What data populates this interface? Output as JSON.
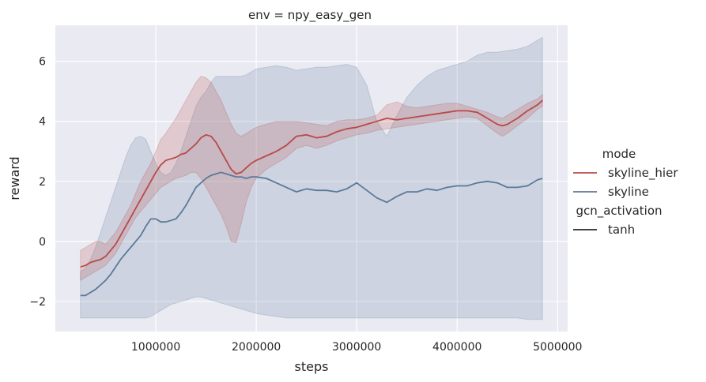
{
  "chart_data": {
    "type": "line",
    "title": "env = npy_easy_gen",
    "xlabel": "steps",
    "ylabel": "reward",
    "xlim": [
      0,
      5100000
    ],
    "ylim": [
      -3,
      7.2
    ],
    "grid": true,
    "legend_placement": "right",
    "xticks": [
      1000000,
      2000000,
      3000000,
      4000000,
      5000000
    ],
    "xtick_labels": [
      "1000000",
      "2000000",
      "3000000",
      "4000000",
      "5000000"
    ],
    "yticks": [
      -2,
      0,
      2,
      4,
      6
    ],
    "ytick_labels": [
      "−2",
      "0",
      "2",
      "4",
      "6"
    ],
    "legend": {
      "sections": [
        {
          "title": "mode",
          "entries": [
            {
              "label": "skyline_hier",
              "color": "#b94a48"
            },
            {
              "label": "skyline",
              "color": "#5b7a99"
            }
          ]
        },
        {
          "title": "gcn_activation",
          "entries": [
            {
              "label": "tanh",
              "color": "#262626"
            }
          ]
        }
      ]
    },
    "series": [
      {
        "name": "skyline_hier",
        "color": "#b94a48",
        "x": [
          250000,
          300000,
          350000,
          400000,
          450000,
          500000,
          550000,
          600000,
          650000,
          700000,
          750000,
          800000,
          850000,
          900000,
          950000,
          1000000,
          1050000,
          1100000,
          1150000,
          1200000,
          1250000,
          1300000,
          1350000,
          1400000,
          1450000,
          1500000,
          1550000,
          1600000,
          1650000,
          1700000,
          1750000,
          1800000,
          1850000,
          1900000,
          1950000,
          2000000,
          2100000,
          2200000,
          2300000,
          2400000,
          2500000,
          2600000,
          2700000,
          2800000,
          2900000,
          3000000,
          3100000,
          3200000,
          3300000,
          3400000,
          3500000,
          3600000,
          3700000,
          3800000,
          3900000,
          4000000,
          4100000,
          4200000,
          4300000,
          4400000,
          4450000,
          4500000,
          4600000,
          4700000,
          4800000,
          4850000
        ],
        "y": [
          -0.85,
          -0.8,
          -0.7,
          -0.65,
          -0.6,
          -0.5,
          -0.3,
          -0.1,
          0.2,
          0.5,
          0.8,
          1.1,
          1.4,
          1.7,
          2.0,
          2.3,
          2.55,
          2.7,
          2.75,
          2.8,
          2.9,
          2.95,
          3.1,
          3.25,
          3.45,
          3.55,
          3.5,
          3.3,
          3.0,
          2.7,
          2.4,
          2.25,
          2.3,
          2.45,
          2.6,
          2.7,
          2.85,
          3.0,
          3.2,
          3.5,
          3.55,
          3.45,
          3.5,
          3.65,
          3.75,
          3.8,
          3.9,
          4.0,
          4.1,
          4.05,
          4.1,
          4.15,
          4.2,
          4.25,
          4.3,
          4.35,
          4.35,
          4.3,
          4.1,
          3.9,
          3.85,
          3.9,
          4.1,
          4.35,
          4.55,
          4.7
        ],
        "lower": [
          -1.3,
          -1.2,
          -1.1,
          -1.0,
          -0.9,
          -0.8,
          -0.6,
          -0.4,
          -0.1,
          0.2,
          0.5,
          0.8,
          1.0,
          1.2,
          1.4,
          1.6,
          1.8,
          1.9,
          2.0,
          2.1,
          2.15,
          2.2,
          2.3,
          2.3,
          2.1,
          1.8,
          1.5,
          1.2,
          0.9,
          0.5,
          0.0,
          -0.05,
          0.6,
          1.3,
          1.8,
          2.1,
          2.4,
          2.6,
          2.8,
          3.1,
          3.2,
          3.1,
          3.2,
          3.35,
          3.45,
          3.55,
          3.6,
          3.7,
          3.75,
          3.8,
          3.85,
          3.9,
          3.95,
          4.0,
          4.05,
          4.1,
          4.15,
          4.1,
          3.85,
          3.6,
          3.5,
          3.6,
          3.85,
          4.1,
          4.4,
          4.5
        ],
        "upper": [
          -0.3,
          -0.2,
          -0.1,
          0.0,
          0.0,
          -0.1,
          0.1,
          0.3,
          0.6,
          0.9,
          1.2,
          1.6,
          2.0,
          2.3,
          2.6,
          3.0,
          3.4,
          3.6,
          3.85,
          4.1,
          4.4,
          4.7,
          5.0,
          5.3,
          5.5,
          5.45,
          5.3,
          5.0,
          4.7,
          4.3,
          3.9,
          3.6,
          3.5,
          3.6,
          3.7,
          3.8,
          3.9,
          4.0,
          4.0,
          4.0,
          3.95,
          3.9,
          3.85,
          4.0,
          4.05,
          4.05,
          4.1,
          4.2,
          4.55,
          4.65,
          4.5,
          4.45,
          4.5,
          4.55,
          4.6,
          4.6,
          4.5,
          4.4,
          4.3,
          4.15,
          4.1,
          4.2,
          4.4,
          4.6,
          4.75,
          4.9
        ]
      },
      {
        "name": "skyline",
        "color": "#5b7a99",
        "x": [
          250000,
          300000,
          350000,
          400000,
          450000,
          500000,
          550000,
          600000,
          650000,
          700000,
          750000,
          800000,
          850000,
          900000,
          950000,
          1000000,
          1050000,
          1100000,
          1150000,
          1200000,
          1250000,
          1300000,
          1350000,
          1400000,
          1450000,
          1500000,
          1550000,
          1600000,
          1650000,
          1700000,
          1750000,
          1800000,
          1850000,
          1900000,
          1950000,
          2000000,
          2100000,
          2200000,
          2300000,
          2400000,
          2500000,
          2600000,
          2700000,
          2800000,
          2900000,
          3000000,
          3100000,
          3200000,
          3300000,
          3400000,
          3500000,
          3600000,
          3700000,
          3800000,
          3900000,
          4000000,
          4100000,
          4200000,
          4300000,
          4400000,
          4500000,
          4600000,
          4700000,
          4800000,
          4850000
        ],
        "y": [
          -1.8,
          -1.8,
          -1.7,
          -1.6,
          -1.45,
          -1.3,
          -1.1,
          -0.85,
          -0.6,
          -0.4,
          -0.2,
          0.0,
          0.2,
          0.5,
          0.75,
          0.75,
          0.65,
          0.65,
          0.7,
          0.75,
          0.95,
          1.2,
          1.5,
          1.8,
          1.95,
          2.1,
          2.2,
          2.25,
          2.3,
          2.25,
          2.2,
          2.15,
          2.15,
          2.1,
          2.15,
          2.15,
          2.1,
          1.95,
          1.8,
          1.65,
          1.75,
          1.7,
          1.7,
          1.65,
          1.75,
          1.95,
          1.7,
          1.45,
          1.3,
          1.5,
          1.65,
          1.65,
          1.75,
          1.7,
          1.8,
          1.85,
          1.85,
          1.95,
          2.0,
          1.95,
          1.8,
          1.8,
          1.85,
          2.05,
          2.1
        ],
        "lower": [
          -2.55,
          -2.55,
          -2.55,
          -2.55,
          -2.55,
          -2.55,
          -2.55,
          -2.55,
          -2.55,
          -2.55,
          -2.55,
          -2.55,
          -2.55,
          -2.55,
          -2.5,
          -2.4,
          -2.3,
          -2.2,
          -2.1,
          -2.05,
          -2.0,
          -1.95,
          -1.9,
          -1.85,
          -1.85,
          -1.9,
          -1.95,
          -2.0,
          -2.05,
          -2.1,
          -2.15,
          -2.2,
          -2.25,
          -2.3,
          -2.35,
          -2.4,
          -2.45,
          -2.5,
          -2.55,
          -2.55,
          -2.55,
          -2.55,
          -2.55,
          -2.55,
          -2.55,
          -2.55,
          -2.55,
          -2.55,
          -2.55,
          -2.55,
          -2.55,
          -2.55,
          -2.55,
          -2.55,
          -2.55,
          -2.55,
          -2.55,
          -2.55,
          -2.55,
          -2.55,
          -2.55,
          -2.55,
          -2.6,
          -2.6,
          -2.6
        ],
        "upper": [
          -1.0,
          -0.9,
          -0.6,
          -0.2,
          0.3,
          0.8,
          1.3,
          1.8,
          2.3,
          2.8,
          3.2,
          3.45,
          3.5,
          3.4,
          3.0,
          2.6,
          2.3,
          2.2,
          2.3,
          2.6,
          3.0,
          3.5,
          4.0,
          4.5,
          4.8,
          5.0,
          5.3,
          5.5,
          5.5,
          5.5,
          5.5,
          5.5,
          5.5,
          5.55,
          5.65,
          5.75,
          5.8,
          5.85,
          5.8,
          5.7,
          5.75,
          5.8,
          5.8,
          5.85,
          5.9,
          5.8,
          5.2,
          4.0,
          3.5,
          4.2,
          4.8,
          5.2,
          5.5,
          5.7,
          5.8,
          5.9,
          6.0,
          6.2,
          6.3,
          6.3,
          6.35,
          6.4,
          6.5,
          6.7,
          6.8
        ]
      }
    ]
  }
}
